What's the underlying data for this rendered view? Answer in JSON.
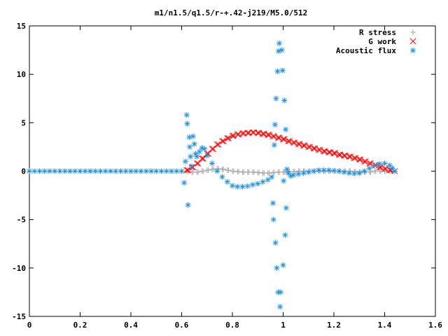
{
  "chart_data": {
    "type": "scatter",
    "title": "m1/n1.5/q1.5/r-+.42-j219/M5.0/512",
    "xlabel": "",
    "ylabel": "",
    "xlim": [
      0,
      1.6
    ],
    "ylim": [
      -15,
      15
    ],
    "xticks": [
      0,
      0.2,
      0.4,
      0.6,
      0.8,
      1,
      1.2,
      1.4,
      1.6
    ],
    "yticks": [
      -15,
      -10,
      -5,
      0,
      5,
      10,
      15
    ],
    "xtick_labels": [
      "0",
      "0.2",
      "0.4",
      "0.6",
      "0.8",
      "1",
      "1.2",
      "1.4",
      "1.6"
    ],
    "ytick_labels": [
      "-15",
      "-10",
      "-5",
      "0",
      "5",
      "10",
      "15"
    ],
    "grid": false,
    "legend_position": "top-right",
    "series": [
      {
        "name": "R stress",
        "marker": "plus",
        "color": "#a0a0a0",
        "points": [
          [
            0.6,
            0.0
          ],
          [
            0.62,
            0.0
          ],
          [
            0.64,
            -0.1
          ],
          [
            0.66,
            -0.1
          ],
          [
            0.68,
            0.0
          ],
          [
            0.7,
            0.1
          ],
          [
            0.72,
            0.2
          ],
          [
            0.74,
            0.25
          ],
          [
            0.76,
            0.2
          ],
          [
            0.78,
            0.1
          ],
          [
            0.8,
            0.0
          ],
          [
            0.82,
            -0.05
          ],
          [
            0.84,
            -0.1
          ],
          [
            0.86,
            -0.1
          ],
          [
            0.88,
            -0.1
          ],
          [
            0.9,
            -0.15
          ],
          [
            0.92,
            -0.2
          ],
          [
            0.94,
            -0.2
          ],
          [
            0.96,
            -0.15
          ],
          [
            0.98,
            -0.1
          ],
          [
            1.0,
            -0.1
          ],
          [
            1.02,
            -0.05
          ],
          [
            1.04,
            -0.05
          ],
          [
            1.06,
            0.0
          ],
          [
            1.08,
            0.0
          ],
          [
            1.1,
            0.0
          ],
          [
            1.12,
            0.0
          ],
          [
            1.14,
            0.0
          ],
          [
            1.16,
            0.0
          ],
          [
            1.18,
            0.0
          ],
          [
            1.2,
            0.0
          ],
          [
            1.22,
            0.0
          ],
          [
            1.24,
            0.0
          ],
          [
            1.26,
            0.0
          ],
          [
            1.28,
            -0.05
          ],
          [
            1.3,
            -0.1
          ],
          [
            1.32,
            -0.1
          ],
          [
            1.34,
            -0.1
          ],
          [
            1.36,
            0.0
          ],
          [
            1.38,
            0.0
          ],
          [
            1.4,
            0.0
          ],
          [
            1.42,
            0.0
          ],
          [
            1.44,
            0.0
          ]
        ]
      },
      {
        "name": "G work",
        "marker": "cross",
        "color": "#ff0000",
        "points": [
          [
            0.62,
            0.1
          ],
          [
            0.64,
            0.4
          ],
          [
            0.66,
            0.8
          ],
          [
            0.68,
            1.3
          ],
          [
            0.7,
            1.8
          ],
          [
            0.72,
            2.3
          ],
          [
            0.74,
            2.75
          ],
          [
            0.76,
            3.1
          ],
          [
            0.78,
            3.4
          ],
          [
            0.8,
            3.65
          ],
          [
            0.82,
            3.8
          ],
          [
            0.84,
            3.9
          ],
          [
            0.86,
            3.95
          ],
          [
            0.88,
            4.0
          ],
          [
            0.9,
            3.95
          ],
          [
            0.92,
            3.85
          ],
          [
            0.94,
            3.75
          ],
          [
            0.96,
            3.6
          ],
          [
            0.98,
            3.45
          ],
          [
            1.0,
            3.3
          ],
          [
            1.02,
            3.1
          ],
          [
            1.04,
            2.95
          ],
          [
            1.06,
            2.8
          ],
          [
            1.08,
            2.65
          ],
          [
            1.1,
            2.5
          ],
          [
            1.12,
            2.35
          ],
          [
            1.14,
            2.2
          ],
          [
            1.16,
            2.05
          ],
          [
            1.18,
            1.95
          ],
          [
            1.2,
            1.85
          ],
          [
            1.22,
            1.7
          ],
          [
            1.24,
            1.6
          ],
          [
            1.26,
            1.5
          ],
          [
            1.28,
            1.35
          ],
          [
            1.3,
            1.2
          ],
          [
            1.32,
            1.0
          ],
          [
            1.34,
            0.8
          ],
          [
            1.36,
            0.6
          ],
          [
            1.38,
            0.4
          ],
          [
            1.4,
            0.25
          ],
          [
            1.42,
            0.1
          ],
          [
            1.44,
            0.0
          ]
        ]
      },
      {
        "name": "Acoustic flux",
        "marker": "star",
        "color": "#1e90e6",
        "points": [
          [
            0.0,
            0.0
          ],
          [
            0.02,
            0.0
          ],
          [
            0.04,
            0.0
          ],
          [
            0.06,
            0.0
          ],
          [
            0.08,
            0.0
          ],
          [
            0.1,
            0.0
          ],
          [
            0.12,
            0.0
          ],
          [
            0.14,
            0.0
          ],
          [
            0.16,
            0.0
          ],
          [
            0.18,
            0.0
          ],
          [
            0.2,
            0.0
          ],
          [
            0.22,
            0.0
          ],
          [
            0.24,
            0.0
          ],
          [
            0.26,
            0.0
          ],
          [
            0.28,
            0.0
          ],
          [
            0.3,
            0.0
          ],
          [
            0.32,
            0.0
          ],
          [
            0.34,
            0.0
          ],
          [
            0.36,
            0.0
          ],
          [
            0.38,
            0.0
          ],
          [
            0.4,
            0.0
          ],
          [
            0.42,
            0.0
          ],
          [
            0.44,
            0.0
          ],
          [
            0.46,
            0.0
          ],
          [
            0.48,
            0.0
          ],
          [
            0.5,
            0.0
          ],
          [
            0.52,
            0.0
          ],
          [
            0.54,
            0.0
          ],
          [
            0.56,
            0.0
          ],
          [
            0.58,
            0.0
          ],
          [
            0.6,
            0.0
          ],
          [
            0.61,
            -1.2
          ],
          [
            0.615,
            1.0
          ],
          [
            0.62,
            5.8
          ],
          [
            0.622,
            4.9
          ],
          [
            0.625,
            -3.5
          ],
          [
            0.63,
            3.5
          ],
          [
            0.632,
            2.5
          ],
          [
            0.635,
            1.5
          ],
          [
            0.64,
            0.5
          ],
          [
            0.645,
            3.6
          ],
          [
            0.65,
            2.8
          ],
          [
            0.655,
            1.8
          ],
          [
            0.66,
            1.5
          ],
          [
            0.67,
            2.0
          ],
          [
            0.68,
            2.4
          ],
          [
            0.69,
            2.3
          ],
          [
            0.7,
            1.6
          ],
          [
            0.72,
            0.8
          ],
          [
            0.74,
            0.0
          ],
          [
            0.76,
            -0.6
          ],
          [
            0.78,
            -1.1
          ],
          [
            0.8,
            -1.5
          ],
          [
            0.82,
            -1.6
          ],
          [
            0.84,
            -1.6
          ],
          [
            0.86,
            -1.55
          ],
          [
            0.88,
            -1.4
          ],
          [
            0.9,
            -1.3
          ],
          [
            0.92,
            -1.1
          ],
          [
            0.94,
            -0.9
          ],
          [
            0.955,
            -0.6
          ],
          [
            0.96,
            -3.3
          ],
          [
            0.962,
            -5.0
          ],
          [
            0.965,
            2.7
          ],
          [
            0.968,
            4.8
          ],
          [
            0.97,
            -7.4
          ],
          [
            0.972,
            7.5
          ],
          [
            0.975,
            -10.0
          ],
          [
            0.978,
            10.3
          ],
          [
            0.98,
            -12.5
          ],
          [
            0.982,
            12.4
          ],
          [
            0.985,
            13.2
          ],
          [
            0.988,
            -14.0
          ],
          [
            0.99,
            -12.5
          ],
          [
            0.995,
            12.5
          ],
          [
            0.998,
            10.4
          ],
          [
            1.0,
            -9.7
          ],
          [
            1.002,
            -1.0
          ],
          [
            1.005,
            7.3
          ],
          [
            1.008,
            -6.6
          ],
          [
            1.01,
            4.3
          ],
          [
            1.012,
            -3.8
          ],
          [
            1.015,
            0.2
          ],
          [
            1.02,
            -0.2
          ],
          [
            1.03,
            -0.5
          ],
          [
            1.04,
            -0.4
          ],
          [
            1.06,
            -0.3
          ],
          [
            1.08,
            -0.2
          ],
          [
            1.1,
            -0.1
          ],
          [
            1.12,
            0.0
          ],
          [
            1.14,
            0.1
          ],
          [
            1.16,
            0.1
          ],
          [
            1.18,
            0.1
          ],
          [
            1.2,
            0.05
          ],
          [
            1.22,
            0.0
          ],
          [
            1.24,
            -0.1
          ],
          [
            1.26,
            -0.2
          ],
          [
            1.28,
            -0.25
          ],
          [
            1.3,
            -0.2
          ],
          [
            1.32,
            0.0
          ],
          [
            1.34,
            0.3
          ],
          [
            1.36,
            0.6
          ],
          [
            1.38,
            0.75
          ],
          [
            1.4,
            0.8
          ],
          [
            1.42,
            0.6
          ],
          [
            1.43,
            0.3
          ],
          [
            1.44,
            0.0
          ]
        ]
      }
    ]
  }
}
